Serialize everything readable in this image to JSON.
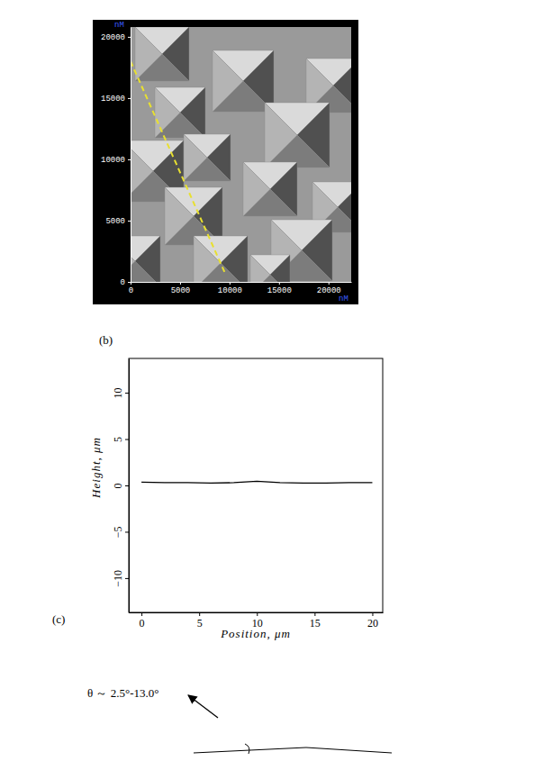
{
  "chart_data": [
    {
      "type": "image",
      "xlabel": "nM",
      "ylabel": "nM",
      "xlim": [
        0,
        22300
      ],
      "ylim": [
        0,
        20800
      ],
      "xticks": [
        0,
        5000,
        10000,
        15000,
        20000
      ],
      "yticks": [
        0,
        5000,
        10000,
        15000,
        20000
      ],
      "profile_line": {
        "x": [
          0,
          9500
        ],
        "y": [
          18000,
          800
        ],
        "color": "#e8e030",
        "line_style": "dashed"
      }
    },
    {
      "type": "line",
      "xlabel": "Position, μm",
      "ylabel": "Height, μm",
      "x": [
        0,
        2,
        4,
        6,
        8,
        10,
        12,
        14,
        16,
        18,
        20
      ],
      "values": [
        0.35,
        0.3,
        0.3,
        0.25,
        0.3,
        0.45,
        0.3,
        0.25,
        0.25,
        0.3,
        0.3
      ],
      "color": "#000000",
      "xlim": [
        -1.1,
        20.9
      ],
      "ylim": [
        -13.7,
        13.7
      ],
      "xticks": [
        0,
        5,
        10,
        15,
        20
      ],
      "yticks": [
        -10,
        -5,
        0,
        5,
        10
      ]
    }
  ],
  "panel_labels": [
    "(b)",
    "(c)"
  ],
  "schematic": {
    "label": "θ ～ 2.5°-13.0°"
  }
}
